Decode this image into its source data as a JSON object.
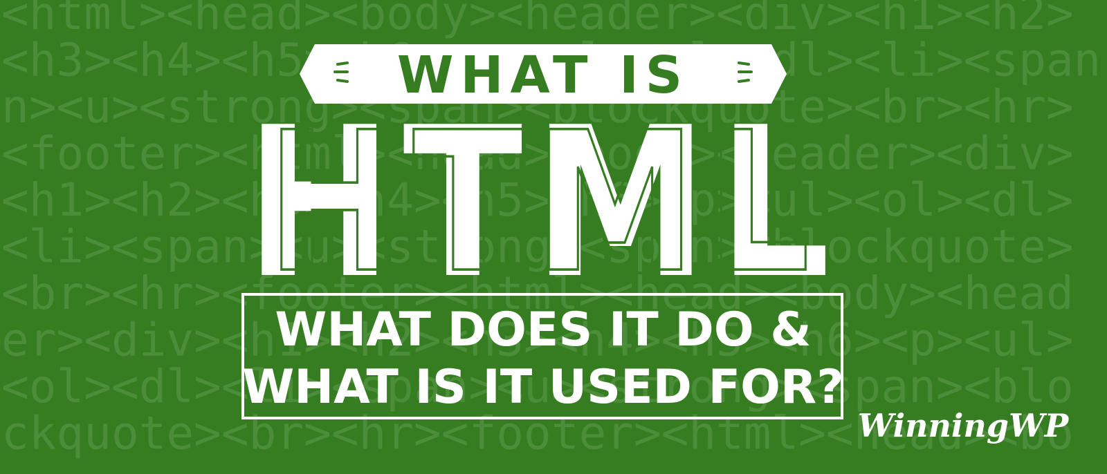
{
  "background_code": [
    "<html><head><body><header><div><h1><h2>",
    "<h3><h4><h5><h6><p><ul><ol><dl><li><span",
    "n><u><strong><span><blockquote><br><hr>",
    "<footer><html><head><body><header><div>",
    "<h1><h2><h3><h4><h5><h6><p><ul><ol><dl>",
    "<li><span><u><strong><span><blockquote>",
    "<br><hr><footer><html><head><body><head",
    "er><div><h1><h2><h3><h4><h5><h6><p><ul>",
    "<ol><dl><li><span><u><strong><span><blo",
    "ckquote><br><hr><footer><html><head><bo"
  ],
  "banner": {
    "kicker": "WHAT IS",
    "title": "HTML",
    "subtitle_lines": [
      "WHAT DOES IT DO &",
      "WHAT IS IT USED FOR?"
    ]
  },
  "brand": "WinningWP"
}
